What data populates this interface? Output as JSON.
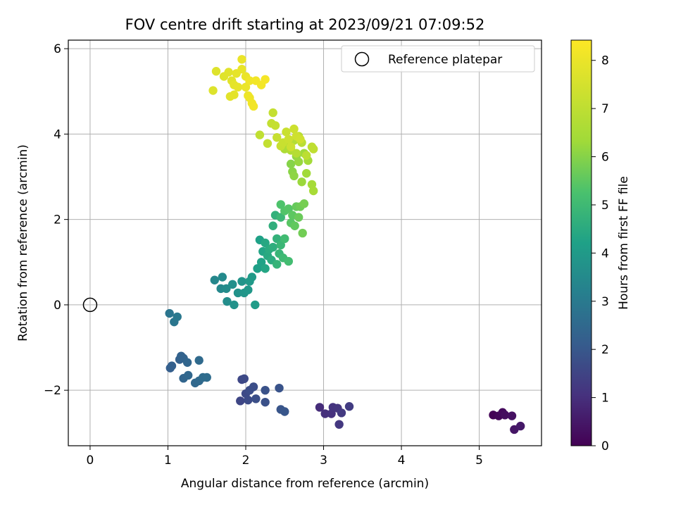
{
  "chart_data": {
    "type": "scatter",
    "title": "FOV centre drift starting at 2023/09/21 07:09:52",
    "xlabel": "Angular distance from reference (arcmin)",
    "ylabel": "Rotation from reference (arcmin)",
    "xlim": [
      -0.28,
      5.8
    ],
    "ylim": [
      -3.3,
      6.2
    ],
    "xticks": [
      0,
      1,
      2,
      3,
      4,
      5
    ],
    "yticks": [
      -2,
      0,
      2,
      4,
      6
    ],
    "grid": true,
    "legend": {
      "placement": "top-right",
      "entries": [
        "Reference platepar"
      ]
    },
    "reference": {
      "x": 0,
      "y": 0,
      "label": "Reference platepar"
    },
    "colorbar": {
      "label": "Hours from first FF file",
      "range": [
        0,
        8.42
      ],
      "ticks": [
        0,
        1,
        2,
        3,
        4,
        5,
        6,
        7,
        8
      ],
      "colormap": "viridis"
    },
    "points": [
      {
        "x": 5.18,
        "y": -2.58,
        "h": 0.05
      },
      {
        "x": 5.25,
        "y": -2.6,
        "h": 0.12
      },
      {
        "x": 5.3,
        "y": -2.52,
        "h": 0.2
      },
      {
        "x": 5.33,
        "y": -2.58,
        "h": 0.28
      },
      {
        "x": 5.42,
        "y": -2.6,
        "h": 0.35
      },
      {
        "x": 5.45,
        "y": -2.92,
        "h": 0.42
      },
      {
        "x": 5.53,
        "y": -2.84,
        "h": 0.5
      },
      {
        "x": 2.95,
        "y": -2.4,
        "h": 0.95
      },
      {
        "x": 3.02,
        "y": -2.55,
        "h": 1.0
      },
      {
        "x": 3.1,
        "y": -2.55,
        "h": 1.05
      },
      {
        "x": 3.12,
        "y": -2.4,
        "h": 1.1
      },
      {
        "x": 3.18,
        "y": -2.42,
        "h": 1.15
      },
      {
        "x": 3.2,
        "y": -2.8,
        "h": 1.2
      },
      {
        "x": 3.23,
        "y": -2.53,
        "h": 1.25
      },
      {
        "x": 3.33,
        "y": -2.38,
        "h": 1.3
      },
      {
        "x": 1.93,
        "y": -2.25,
        "h": 1.55
      },
      {
        "x": 1.95,
        "y": -1.75,
        "h": 1.58
      },
      {
        "x": 1.98,
        "y": -1.73,
        "h": 1.62
      },
      {
        "x": 2.0,
        "y": -2.08,
        "h": 1.65
      },
      {
        "x": 2.03,
        "y": -2.23,
        "h": 1.68
      },
      {
        "x": 2.05,
        "y": -2.0,
        "h": 1.72
      },
      {
        "x": 2.1,
        "y": -1.92,
        "h": 1.75
      },
      {
        "x": 2.13,
        "y": -2.2,
        "h": 1.78
      },
      {
        "x": 2.25,
        "y": -2.28,
        "h": 1.82
      },
      {
        "x": 2.25,
        "y": -2.0,
        "h": 1.85
      },
      {
        "x": 2.43,
        "y": -1.95,
        "h": 1.88
      },
      {
        "x": 2.45,
        "y": -2.45,
        "h": 1.92
      },
      {
        "x": 2.5,
        "y": -2.5,
        "h": 1.95
      },
      {
        "x": 1.03,
        "y": -1.48,
        "h": 2.2
      },
      {
        "x": 1.05,
        "y": -1.43,
        "h": 2.23
      },
      {
        "x": 1.15,
        "y": -1.28,
        "h": 2.27
      },
      {
        "x": 1.17,
        "y": -1.2,
        "h": 2.3
      },
      {
        "x": 1.2,
        "y": -1.25,
        "h": 2.33
      },
      {
        "x": 1.2,
        "y": -1.72,
        "h": 2.37
      },
      {
        "x": 1.25,
        "y": -1.35,
        "h": 2.4
      },
      {
        "x": 1.26,
        "y": -1.65,
        "h": 2.43
      },
      {
        "x": 1.35,
        "y": -1.83,
        "h": 2.47
      },
      {
        "x": 1.4,
        "y": -1.78,
        "h": 2.5
      },
      {
        "x": 1.4,
        "y": -1.3,
        "h": 2.53
      },
      {
        "x": 1.45,
        "y": -1.7,
        "h": 2.57
      },
      {
        "x": 1.5,
        "y": -1.7,
        "h": 2.6
      },
      {
        "x": 1.02,
        "y": -0.2,
        "h": 2.85
      },
      {
        "x": 1.08,
        "y": -0.4,
        "h": 2.9
      },
      {
        "x": 1.12,
        "y": -0.28,
        "h": 2.95
      },
      {
        "x": 1.6,
        "y": 0.58,
        "h": 3.4
      },
      {
        "x": 1.68,
        "y": 0.38,
        "h": 3.45
      },
      {
        "x": 1.7,
        "y": 0.65,
        "h": 3.5
      },
      {
        "x": 1.75,
        "y": 0.38,
        "h": 3.55
      },
      {
        "x": 1.76,
        "y": 0.08,
        "h": 3.6
      },
      {
        "x": 1.83,
        "y": 0.48,
        "h": 3.65
      },
      {
        "x": 1.85,
        "y": 0.0,
        "h": 3.7
      },
      {
        "x": 1.9,
        "y": 0.28,
        "h": 3.75
      },
      {
        "x": 1.95,
        "y": 0.55,
        "h": 3.8
      },
      {
        "x": 1.98,
        "y": 0.28,
        "h": 3.85
      },
      {
        "x": 2.03,
        "y": 0.35,
        "h": 3.9
      },
      {
        "x": 2.05,
        "y": 0.55,
        "h": 3.95
      },
      {
        "x": 2.08,
        "y": 0.65,
        "h": 4.0
      },
      {
        "x": 2.12,
        "y": 0.0,
        "h": 4.05
      },
      {
        "x": 2.15,
        "y": 0.85,
        "h": 4.15
      },
      {
        "x": 2.18,
        "y": 1.52,
        "h": 4.2
      },
      {
        "x": 2.2,
        "y": 1.0,
        "h": 4.25
      },
      {
        "x": 2.22,
        "y": 1.25,
        "h": 4.3
      },
      {
        "x": 2.25,
        "y": 0.85,
        "h": 4.35
      },
      {
        "x": 2.25,
        "y": 1.45,
        "h": 4.4
      },
      {
        "x": 2.28,
        "y": 1.15,
        "h": 4.45
      },
      {
        "x": 2.3,
        "y": 1.3,
        "h": 4.5
      },
      {
        "x": 2.33,
        "y": 1.05,
        "h": 4.55
      },
      {
        "x": 2.35,
        "y": 1.35,
        "h": 4.6
      },
      {
        "x": 2.35,
        "y": 1.85,
        "h": 4.65
      },
      {
        "x": 2.38,
        "y": 2.1,
        "h": 4.7
      },
      {
        "x": 2.4,
        "y": 1.55,
        "h": 4.75
      },
      {
        "x": 2.4,
        "y": 0.95,
        "h": 4.8
      },
      {
        "x": 2.43,
        "y": 1.2,
        "h": 4.85
      },
      {
        "x": 2.45,
        "y": 1.4,
        "h": 4.9
      },
      {
        "x": 2.45,
        "y": 2.05,
        "h": 4.95
      },
      {
        "x": 2.48,
        "y": 1.1,
        "h": 5.0
      },
      {
        "x": 2.5,
        "y": 1.55,
        "h": 5.05
      },
      {
        "x": 2.55,
        "y": 1.02,
        "h": 5.1
      },
      {
        "x": 2.45,
        "y": 2.35,
        "h": 5.3
      },
      {
        "x": 2.5,
        "y": 2.2,
        "h": 5.35
      },
      {
        "x": 2.55,
        "y": 2.25,
        "h": 5.4
      },
      {
        "x": 2.58,
        "y": 1.92,
        "h": 5.45
      },
      {
        "x": 2.6,
        "y": 2.1,
        "h": 5.5
      },
      {
        "x": 2.63,
        "y": 1.85,
        "h": 5.55
      },
      {
        "x": 2.65,
        "y": 2.3,
        "h": 5.6
      },
      {
        "x": 2.68,
        "y": 2.05,
        "h": 5.65
      },
      {
        "x": 2.7,
        "y": 2.3,
        "h": 5.7
      },
      {
        "x": 2.73,
        "y": 1.68,
        "h": 5.75
      },
      {
        "x": 2.75,
        "y": 2.37,
        "h": 5.8
      },
      {
        "x": 2.58,
        "y": 3.3,
        "h": 6.0
      },
      {
        "x": 2.6,
        "y": 3.12,
        "h": 6.05
      },
      {
        "x": 2.62,
        "y": 3.02,
        "h": 6.1
      },
      {
        "x": 2.65,
        "y": 3.48,
        "h": 6.15
      },
      {
        "x": 2.68,
        "y": 3.35,
        "h": 6.2
      },
      {
        "x": 2.72,
        "y": 2.88,
        "h": 6.25
      },
      {
        "x": 2.75,
        "y": 3.55,
        "h": 6.3
      },
      {
        "x": 2.78,
        "y": 3.08,
        "h": 6.35
      },
      {
        "x": 2.8,
        "y": 3.38,
        "h": 6.4
      },
      {
        "x": 2.85,
        "y": 2.82,
        "h": 6.45
      },
      {
        "x": 2.87,
        "y": 2.67,
        "h": 6.5
      },
      {
        "x": 2.5,
        "y": 3.65,
        "h": 6.6
      },
      {
        "x": 2.55,
        "y": 3.75,
        "h": 6.65
      },
      {
        "x": 2.58,
        "y": 3.62,
        "h": 6.7
      },
      {
        "x": 2.62,
        "y": 3.85,
        "h": 6.75
      },
      {
        "x": 2.65,
        "y": 3.55,
        "h": 6.8
      },
      {
        "x": 2.68,
        "y": 3.95,
        "h": 6.85
      },
      {
        "x": 2.72,
        "y": 3.8,
        "h": 6.9
      },
      {
        "x": 2.78,
        "y": 3.5,
        "h": 6.95
      },
      {
        "x": 2.85,
        "y": 3.7,
        "h": 7.0
      },
      {
        "x": 2.87,
        "y": 3.65,
        "h": 7.02
      },
      {
        "x": 2.18,
        "y": 3.98,
        "h": 7.05
      },
      {
        "x": 2.28,
        "y": 3.78,
        "h": 7.08
      },
      {
        "x": 2.33,
        "y": 4.25,
        "h": 7.1
      },
      {
        "x": 2.35,
        "y": 4.5,
        "h": 7.12
      },
      {
        "x": 2.38,
        "y": 4.2,
        "h": 7.15
      },
      {
        "x": 2.4,
        "y": 3.92,
        "h": 7.18
      },
      {
        "x": 2.45,
        "y": 3.72,
        "h": 7.2
      },
      {
        "x": 2.48,
        "y": 3.8,
        "h": 7.22
      },
      {
        "x": 2.52,
        "y": 4.05,
        "h": 7.25
      },
      {
        "x": 2.55,
        "y": 3.88,
        "h": 7.28
      },
      {
        "x": 2.58,
        "y": 3.7,
        "h": 7.3
      },
      {
        "x": 2.62,
        "y": 4.12,
        "h": 7.32
      },
      {
        "x": 2.65,
        "y": 3.95,
        "h": 7.35
      },
      {
        "x": 2.7,
        "y": 3.88,
        "h": 7.38
      },
      {
        "x": 1.58,
        "y": 5.02,
        "h": 7.7
      },
      {
        "x": 1.62,
        "y": 5.47,
        "h": 7.72
      },
      {
        "x": 1.72,
        "y": 5.35,
        "h": 7.75
      },
      {
        "x": 1.78,
        "y": 5.45,
        "h": 7.78
      },
      {
        "x": 1.8,
        "y": 4.88,
        "h": 7.8
      },
      {
        "x": 1.82,
        "y": 5.25,
        "h": 7.82
      },
      {
        "x": 1.85,
        "y": 4.92,
        "h": 7.85
      },
      {
        "x": 1.85,
        "y": 5.15,
        "h": 7.88
      },
      {
        "x": 1.88,
        "y": 5.42,
        "h": 7.9
      },
      {
        "x": 1.9,
        "y": 5.1,
        "h": 7.92
      },
      {
        "x": 1.95,
        "y": 5.52,
        "h": 7.95
      },
      {
        "x": 1.95,
        "y": 5.75,
        "h": 7.98
      },
      {
        "x": 2.0,
        "y": 5.35,
        "h": 8.0
      },
      {
        "x": 2.0,
        "y": 5.1,
        "h": 8.02
      },
      {
        "x": 2.03,
        "y": 4.9,
        "h": 8.05
      },
      {
        "x": 2.05,
        "y": 4.85,
        "h": 8.08
      },
      {
        "x": 2.05,
        "y": 5.25,
        "h": 8.1
      },
      {
        "x": 2.08,
        "y": 4.72,
        "h": 8.12
      },
      {
        "x": 2.1,
        "y": 4.65,
        "h": 8.15
      },
      {
        "x": 2.13,
        "y": 5.25,
        "h": 8.18
      },
      {
        "x": 2.2,
        "y": 5.15,
        "h": 8.2
      },
      {
        "x": 2.25,
        "y": 5.28,
        "h": 8.25
      }
    ]
  }
}
